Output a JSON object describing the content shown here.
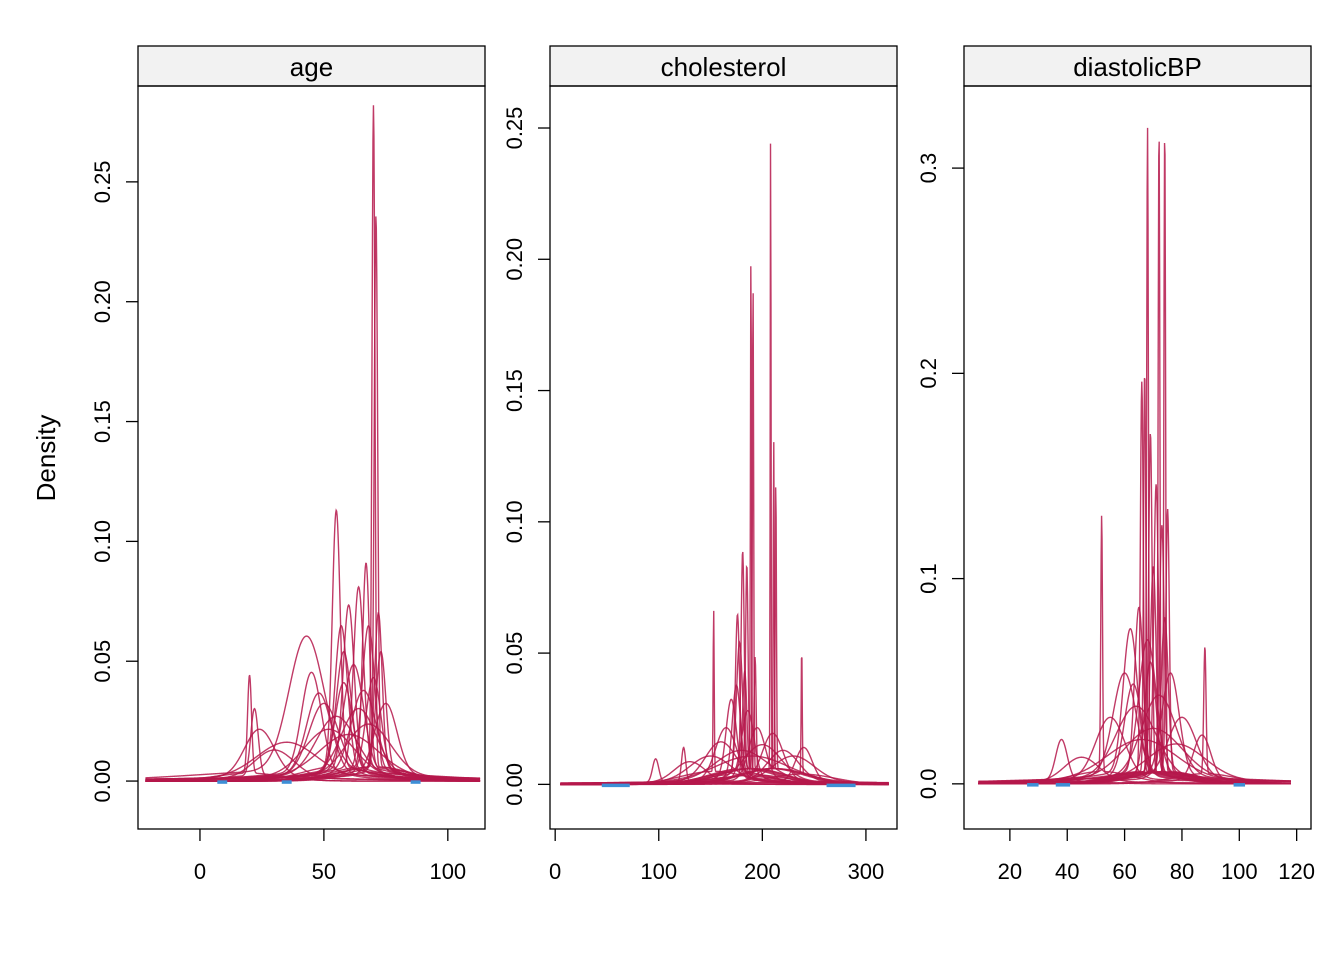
{
  "chart_data": {
    "type": "line",
    "ylabel": "Density",
    "colors": {
      "imputed": "#b5174b",
      "observed": "#3d8fd6",
      "strip_bg": "#f2f2f2"
    },
    "panels": [
      {
        "title": "age",
        "xlim": [
          -25,
          115
        ],
        "ylim": [
          -0.02,
          0.29
        ],
        "xticks": [
          0,
          50,
          100
        ],
        "xtick_labels": [
          "0",
          "50",
          "100"
        ],
        "yticks": [
          0,
          0.05,
          0.1,
          0.15,
          0.2,
          0.25
        ],
        "ytick_labels": [
          "0.00",
          "0.05",
          "0.10",
          "0.15",
          "0.20",
          "0.25"
        ],
        "density_range": [
          -22,
          113
        ],
        "observed_segments": [
          [
            7,
            11
          ],
          [
            33,
            37
          ],
          [
            85,
            89
          ]
        ],
        "peaks": [
          {
            "x": 70,
            "y": 0.276,
            "s": 0.6
          },
          {
            "x": 71,
            "y": 0.23,
            "s": 0.7
          },
          {
            "x": 55,
            "y": 0.107,
            "s": 1.6
          },
          {
            "x": 67,
            "y": 0.085,
            "s": 1.4
          },
          {
            "x": 64,
            "y": 0.075,
            "s": 2.0
          },
          {
            "x": 60,
            "y": 0.068,
            "s": 2.2
          },
          {
            "x": 68,
            "y": 0.06,
            "s": 2.5
          },
          {
            "x": 72,
            "y": 0.065,
            "s": 1.5
          },
          {
            "x": 43,
            "y": 0.056,
            "s": 7.0
          },
          {
            "x": 58,
            "y": 0.05,
            "s": 3.0
          },
          {
            "x": 20,
            "y": 0.041,
            "s": 0.8
          },
          {
            "x": 22,
            "y": 0.028,
            "s": 1.5
          },
          {
            "x": 45,
            "y": 0.042,
            "s": 4.0
          },
          {
            "x": 62,
            "y": 0.045,
            "s": 4.0
          },
          {
            "x": 50,
            "y": 0.03,
            "s": 6.0
          },
          {
            "x": 24,
            "y": 0.02,
            "s": 6.0
          },
          {
            "x": 66,
            "y": 0.035,
            "s": 5.0
          },
          {
            "x": 75,
            "y": 0.03,
            "s": 4.5
          },
          {
            "x": 55,
            "y": 0.025,
            "s": 8.0
          },
          {
            "x": 30,
            "y": 0.012,
            "s": 8.0
          },
          {
            "x": 64,
            "y": 0.028,
            "s": 7.0
          },
          {
            "x": 58,
            "y": 0.038,
            "s": 3.5
          },
          {
            "x": 70,
            "y": 0.04,
            "s": 3.0
          },
          {
            "x": 52,
            "y": 0.02,
            "s": 10.0
          },
          {
            "x": 35,
            "y": 0.015,
            "s": 12.0
          },
          {
            "x": 68,
            "y": 0.022,
            "s": 9.0
          },
          {
            "x": 60,
            "y": 0.018,
            "s": 12.0
          },
          {
            "x": 48,
            "y": 0.034,
            "s": 5.0
          },
          {
            "x": 73,
            "y": 0.05,
            "s": 2.0
          },
          {
            "x": 57,
            "y": 0.06,
            "s": 2.5
          }
        ]
      },
      {
        "title": "cholesterol",
        "xlim": [
          -5,
          330
        ],
        "ylim": [
          -0.017,
          0.266
        ],
        "xticks": [
          0,
          100,
          200,
          300
        ],
        "xtick_labels": [
          "0",
          "100",
          "200",
          "300"
        ],
        "yticks": [
          0,
          0.05,
          0.1,
          0.15,
          0.2,
          0.25
        ],
        "ytick_labels": [
          "0.00",
          "0.05",
          "0.10",
          "0.15",
          "0.20",
          "0.25"
        ],
        "density_range": [
          5,
          322
        ],
        "observed_segments": [
          [
            45,
            72
          ],
          [
            262,
            290
          ]
        ],
        "peaks": [
          {
            "x": 208,
            "y": 0.249,
            "s": 0.4
          },
          {
            "x": 189,
            "y": 0.199,
            "s": 0.5
          },
          {
            "x": 191,
            "y": 0.185,
            "s": 0.6
          },
          {
            "x": 211,
            "y": 0.125,
            "s": 0.5
          },
          {
            "x": 213,
            "y": 0.11,
            "s": 0.6
          },
          {
            "x": 181,
            "y": 0.083,
            "s": 1.5
          },
          {
            "x": 185,
            "y": 0.078,
            "s": 1.2
          },
          {
            "x": 153,
            "y": 0.062,
            "s": 0.5
          },
          {
            "x": 238,
            "y": 0.049,
            "s": 0.5
          },
          {
            "x": 178,
            "y": 0.05,
            "s": 3.0
          },
          {
            "x": 175,
            "y": 0.035,
            "s": 4.0
          },
          {
            "x": 193,
            "y": 0.045,
            "s": 1.0
          },
          {
            "x": 160,
            "y": 0.015,
            "s": 15.0
          },
          {
            "x": 200,
            "y": 0.014,
            "s": 18.0
          },
          {
            "x": 180,
            "y": 0.012,
            "s": 25.0
          },
          {
            "x": 220,
            "y": 0.012,
            "s": 15.0
          },
          {
            "x": 240,
            "y": 0.013,
            "s": 8.0
          },
          {
            "x": 130,
            "y": 0.008,
            "s": 15.0
          },
          {
            "x": 97,
            "y": 0.009,
            "s": 3.0
          },
          {
            "x": 124,
            "y": 0.013,
            "s": 2.0
          },
          {
            "x": 170,
            "y": 0.03,
            "s": 5.0
          },
          {
            "x": 186,
            "y": 0.026,
            "s": 6.0
          },
          {
            "x": 150,
            "y": 0.01,
            "s": 20.0
          },
          {
            "x": 210,
            "y": 0.018,
            "s": 10.0
          },
          {
            "x": 195,
            "y": 0.02,
            "s": 8.0
          },
          {
            "x": 183,
            "y": 0.04,
            "s": 2.0
          },
          {
            "x": 165,
            "y": 0.02,
            "s": 10.0
          },
          {
            "x": 230,
            "y": 0.01,
            "s": 20.0
          },
          {
            "x": 190,
            "y": 0.01,
            "s": 35.0
          },
          {
            "x": 176,
            "y": 0.06,
            "s": 2.0
          }
        ]
      },
      {
        "title": "diastolicBP",
        "xlim": [
          4,
          125
        ],
        "ylim": [
          -0.022,
          0.34
        ],
        "xticks": [
          20,
          40,
          60,
          80,
          100,
          120
        ],
        "xtick_labels": [
          "20",
          "40",
          "60",
          "80",
          "100",
          "120"
        ],
        "yticks": [
          0,
          0.1,
          0.2,
          0.3
        ],
        "ytick_labels": [
          "0.0",
          "0.1",
          "0.2",
          "0.3"
        ],
        "density_range": [
          9,
          118
        ],
        "observed_segments": [
          [
            26,
            30
          ],
          [
            36,
            41
          ],
          [
            98,
            102
          ]
        ],
        "peaks": [
          {
            "x": 68,
            "y": 0.314,
            "s": 0.3
          },
          {
            "x": 72,
            "y": 0.314,
            "s": 0.3
          },
          {
            "x": 74,
            "y": 0.314,
            "s": 0.3
          },
          {
            "x": 67,
            "y": 0.195,
            "s": 0.4
          },
          {
            "x": 66,
            "y": 0.19,
            "s": 0.5
          },
          {
            "x": 69,
            "y": 0.165,
            "s": 0.6
          },
          {
            "x": 71,
            "y": 0.14,
            "s": 0.8
          },
          {
            "x": 75,
            "y": 0.128,
            "s": 0.6
          },
          {
            "x": 52,
            "y": 0.125,
            "s": 0.3
          },
          {
            "x": 73,
            "y": 0.12,
            "s": 0.8
          },
          {
            "x": 70,
            "y": 0.1,
            "s": 1.0
          },
          {
            "x": 65,
            "y": 0.08,
            "s": 1.5
          },
          {
            "x": 88,
            "y": 0.062,
            "s": 0.4
          },
          {
            "x": 62,
            "y": 0.07,
            "s": 2.5
          },
          {
            "x": 68,
            "y": 0.065,
            "s": 3.0
          },
          {
            "x": 60,
            "y": 0.05,
            "s": 4.0
          },
          {
            "x": 76,
            "y": 0.05,
            "s": 3.0
          },
          {
            "x": 72,
            "y": 0.04,
            "s": 6.0
          },
          {
            "x": 64,
            "y": 0.035,
            "s": 7.0
          },
          {
            "x": 80,
            "y": 0.03,
            "s": 5.0
          },
          {
            "x": 38,
            "y": 0.02,
            "s": 2.0
          },
          {
            "x": 87,
            "y": 0.022,
            "s": 3.0
          },
          {
            "x": 55,
            "y": 0.03,
            "s": 5.0
          },
          {
            "x": 70,
            "y": 0.025,
            "s": 10.0
          },
          {
            "x": 66,
            "y": 0.02,
            "s": 12.0
          },
          {
            "x": 45,
            "y": 0.012,
            "s": 6.0
          },
          {
            "x": 78,
            "y": 0.018,
            "s": 10.0
          },
          {
            "x": 69,
            "y": 0.055,
            "s": 2.0
          },
          {
            "x": 63,
            "y": 0.045,
            "s": 3.0
          },
          {
            "x": 74,
            "y": 0.075,
            "s": 1.2
          }
        ]
      }
    ]
  }
}
